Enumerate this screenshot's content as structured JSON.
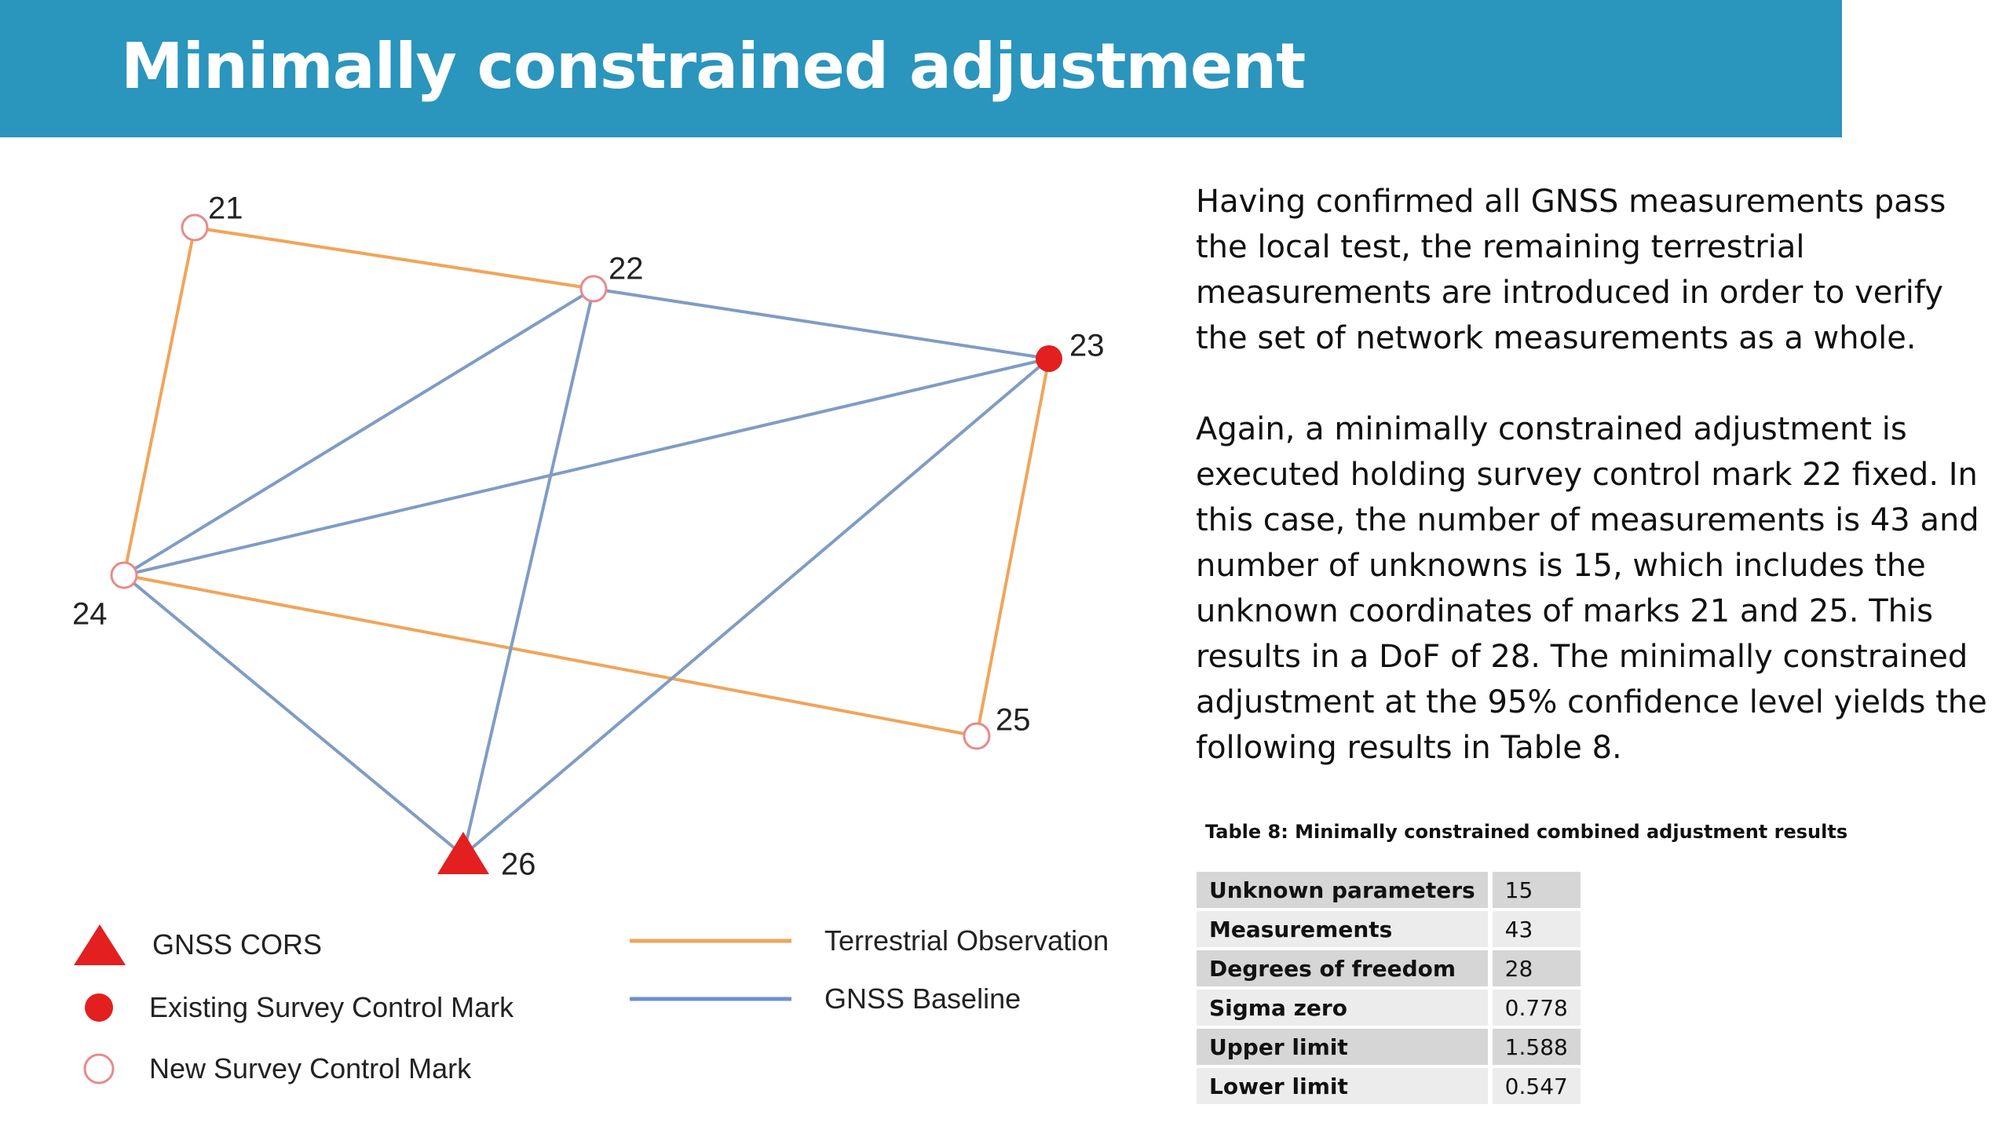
{
  "header": {
    "title": "Minimally constrained adjustment"
  },
  "colors": {
    "header_bg": "#2a95bd",
    "terrestrial": "#f0a55a",
    "gnss": "#7f9cc4",
    "red": "#e31f1f"
  },
  "diagram": {
    "nodes": [
      {
        "id": "21",
        "label": "21",
        "type": "new"
      },
      {
        "id": "22",
        "label": "22",
        "type": "new"
      },
      {
        "id": "23",
        "label": "23",
        "type": "existing"
      },
      {
        "id": "24",
        "label": "24",
        "type": "new"
      },
      {
        "id": "25",
        "label": "25",
        "type": "new"
      },
      {
        "id": "26",
        "label": "26",
        "type": "cors"
      }
    ],
    "edges": [
      {
        "from": "21",
        "to": "22",
        "kind": "terrestrial"
      },
      {
        "from": "21",
        "to": "24",
        "kind": "terrestrial"
      },
      {
        "from": "24",
        "to": "25",
        "kind": "terrestrial"
      },
      {
        "from": "23",
        "to": "25",
        "kind": "terrestrial"
      },
      {
        "from": "22",
        "to": "23",
        "kind": "gnss"
      },
      {
        "from": "22",
        "to": "24",
        "kind": "gnss"
      },
      {
        "from": "22",
        "to": "26",
        "kind": "gnss"
      },
      {
        "from": "23",
        "to": "24",
        "kind": "gnss"
      },
      {
        "from": "23",
        "to": "26",
        "kind": "gnss"
      },
      {
        "from": "24",
        "to": "26",
        "kind": "gnss"
      }
    ]
  },
  "legend": {
    "cors": "GNSS CORS",
    "existing": "Existing Survey Control Mark",
    "new": "New Survey Control Mark",
    "terrestrial": "Terrestrial Observation",
    "gnss": "GNSS Baseline"
  },
  "body": {
    "paragraph1": "Having confirmed all GNSS measurements pass the local test, the remaining terrestrial measurements are introduced in order to verify the set of network measurements as a whole.",
    "paragraph2": "Again, a minimally constrained adjustment is executed holding survey control mark 22 fixed. In this case, the number of measurements is 43 and number of unknowns is 15, which includes the unknown coordinates of marks 21 and 25. This results in a DoF of 28. The minimally constrained adjustment at the 95% confidence level yields the following results in Table 8."
  },
  "table": {
    "caption": "Table 8: Minimally constrained combined adjustment results",
    "rows": [
      {
        "label": "Unknown parameters",
        "value": "15"
      },
      {
        "label": "Measurements",
        "value": "43"
      },
      {
        "label": "Degrees of freedom",
        "value": "28"
      },
      {
        "label": "Sigma zero",
        "value": "0.778"
      },
      {
        "label": "Upper limit",
        "value": "1.588"
      },
      {
        "label": "Lower limit",
        "value": "0.547"
      }
    ]
  }
}
